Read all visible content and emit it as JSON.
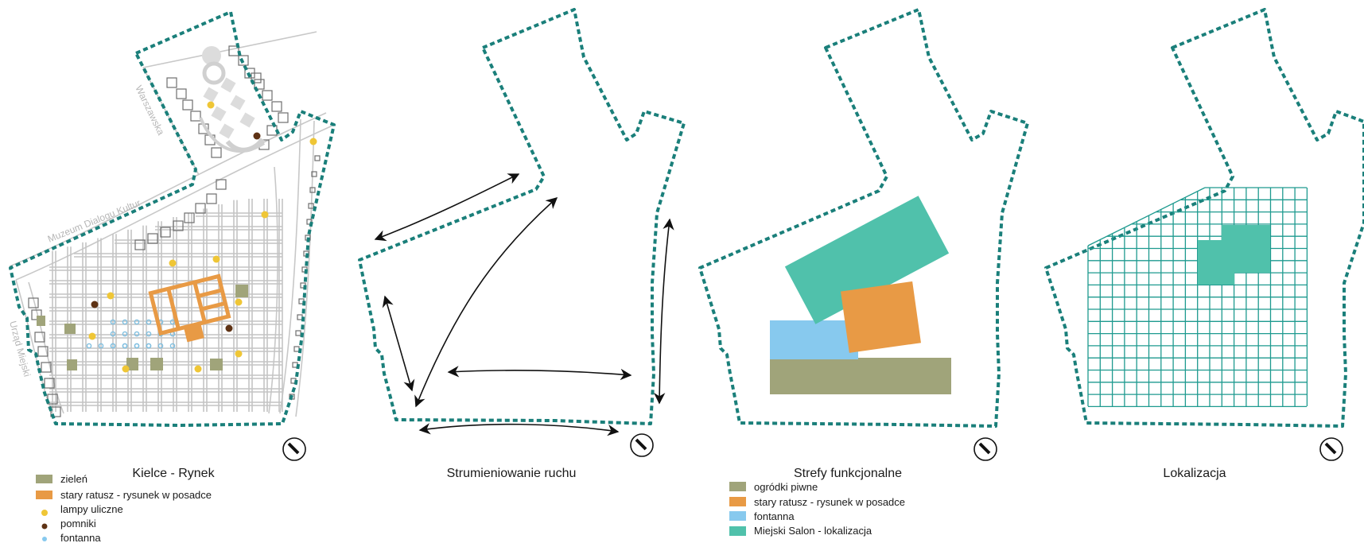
{
  "colors": {
    "outline": "#1a7f7a",
    "green": "#a0a47a",
    "orange": "#e89a45",
    "yellow": "#efc636",
    "brown": "#5e3214",
    "light_blue": "#87c9ee",
    "teal": "#50c1ab",
    "grid_teal": "#1e9a8f"
  },
  "panel1": {
    "title": "Kielce - Rynek",
    "streets": {
      "warszawska": "Warszawska",
      "muzeum": "Muzeum Dialogu Kultur",
      "urzad": "Urząd Miejski"
    },
    "legend": [
      {
        "label": "zieleń",
        "swatch": "green"
      },
      {
        "label": "stary ratusz - rysunek w posadce",
        "swatch": "orange"
      },
      {
        "label": "lampy uliczne",
        "swatch": "yellow-dot"
      },
      {
        "label": "pomniki",
        "swatch": "brown-dot"
      },
      {
        "label": "fontanna",
        "swatch": "blue-dot"
      }
    ]
  },
  "panel2": {
    "title": "Strumieniowanie ruchu"
  },
  "panel3": {
    "title": "Strefy funkcjonalne",
    "legend": [
      {
        "label": "ogródki piwne",
        "swatch": "green"
      },
      {
        "label": "stary ratusz - rysunek w posadce",
        "swatch": "orange"
      },
      {
        "label": "fontanna",
        "swatch": "light_blue"
      },
      {
        "label": "Miejski Salon - lokalizacja",
        "swatch": "teal"
      }
    ]
  },
  "panel4": {
    "title": "Lokalizacja"
  },
  "icons": [
    "north-arrow-icon"
  ]
}
